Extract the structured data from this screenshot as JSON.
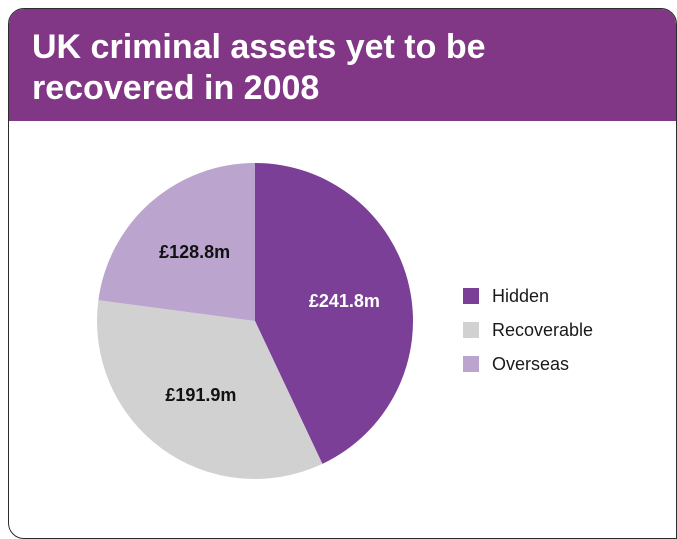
{
  "header": {
    "title": "UK criminal assets yet to be recovered in 2008"
  },
  "chart_data": {
    "type": "pie",
    "title": "UK criminal assets yet to be recovered in 2008",
    "slices": [
      {
        "label": "Hidden",
        "value": 241.8,
        "value_label": "£241.8m",
        "color": "#7b3f97",
        "label_color": "#ffffff"
      },
      {
        "label": "Recoverable",
        "value": 191.9,
        "value_label": "£191.9m",
        "color": "#d1d1d1",
        "label_color": "#111111"
      },
      {
        "label": "Overseas",
        "value": 128.8,
        "value_label": "£128.8m",
        "color": "#bba5cf",
        "label_color": "#111111"
      }
    ],
    "start_angle": "12 o'clock",
    "direction": "clockwise",
    "legend_position": "right"
  },
  "colors": {
    "header_bg": "#823786",
    "header_text": "#ffffff"
  }
}
